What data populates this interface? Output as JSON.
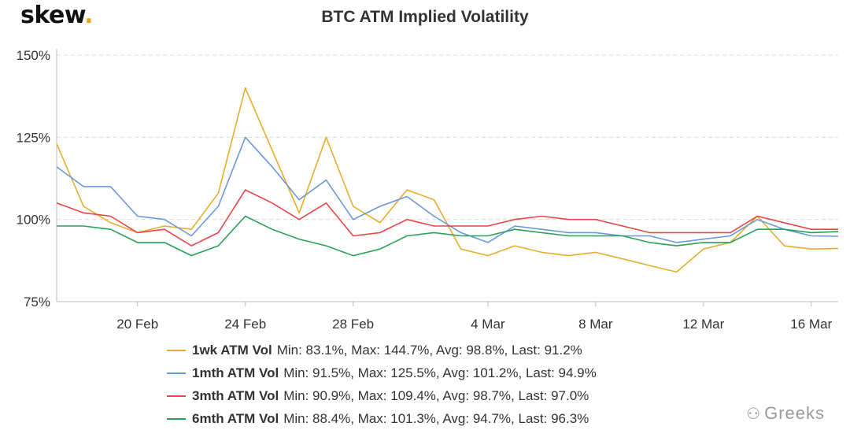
{
  "brand": {
    "name": "skew",
    "dot": "."
  },
  "watermark": {
    "icon": "wechat-icon",
    "text": "Greeks"
  },
  "colors": {
    "1wk": "#e6ad2e",
    "1mth": "#6a98d8",
    "3mth": "#e64646",
    "6mth": "#2aa05a",
    "grid": "#dddddd"
  },
  "chart_data": {
    "type": "line",
    "title": "BTC ATM Implied Volatility",
    "xlabel": "",
    "ylabel": "",
    "x_range": [
      "2020-02-17",
      "2020-03-17"
    ],
    "ylim": [
      75,
      150
    ],
    "y_ticks": [
      75,
      100,
      125,
      150
    ],
    "y_tick_labels": [
      "75%",
      "100%",
      "125%",
      "150%"
    ],
    "x_ticks": [
      "2020-02-20",
      "2020-02-24",
      "2020-02-28",
      "2020-03-04",
      "2020-03-08",
      "2020-03-12",
      "2020-03-16"
    ],
    "x_tick_labels": [
      "20 Feb",
      "24 Feb",
      "28 Feb",
      "4 Mar",
      "8 Mar",
      "12 Mar",
      "16 Mar"
    ],
    "grid": "horizontal dashed",
    "legend_position": "bottom",
    "dates": [
      "2020-02-17",
      "2020-02-18",
      "2020-02-19",
      "2020-02-20",
      "2020-02-21",
      "2020-02-22",
      "2020-02-23",
      "2020-02-24",
      "2020-02-25",
      "2020-02-26",
      "2020-02-27",
      "2020-02-28",
      "2020-02-29",
      "2020-03-01",
      "2020-03-02",
      "2020-03-03",
      "2020-03-04",
      "2020-03-05",
      "2020-03-06",
      "2020-03-07",
      "2020-03-08",
      "2020-03-09",
      "2020-03-10",
      "2020-03-11",
      "2020-03-12",
      "2020-03-13",
      "2020-03-14",
      "2020-03-15",
      "2020-03-16",
      "2020-03-17"
    ],
    "series": [
      {
        "key": "1wk",
        "name": "1wk ATM Vol",
        "stats": "Min: 83.1%, Max: 144.7%, Avg: 98.8%, Last: 91.2%",
        "values": [
          123,
          104,
          99,
          96,
          98,
          97,
          108,
          140,
          121,
          102,
          125,
          104,
          99,
          109,
          106,
          91,
          89,
          92,
          90,
          89,
          90,
          88,
          86,
          84,
          91,
          93,
          101,
          92,
          91,
          91.2
        ]
      },
      {
        "key": "1mth",
        "name": "1mth ATM Vol",
        "stats": "Min: 91.5%, Max: 125.5%, Avg: 101.2%, Last: 94.9%",
        "values": [
          116,
          110,
          110,
          101,
          100,
          95,
          104,
          125,
          116,
          106,
          112,
          100,
          104,
          107,
          101,
          96,
          93,
          98,
          97,
          96,
          96,
          95,
          95,
          93,
          94,
          95,
          100,
          97,
          95,
          94.9
        ]
      },
      {
        "key": "3mth",
        "name": "3mth ATM Vol",
        "stats": "Min: 90.9%, Max: 109.4%, Avg: 98.7%, Last: 97.0%",
        "values": [
          105,
          102,
          101,
          96,
          97,
          92,
          96,
          109,
          105,
          100,
          105,
          95,
          96,
          100,
          98,
          98,
          98,
          100,
          101,
          100,
          100,
          98,
          96,
          96,
          96,
          96,
          101,
          99,
          97,
          97.0
        ]
      },
      {
        "key": "6mth",
        "name": "6mth ATM Vol",
        "stats": "Min: 88.4%, Max: 101.3%, Avg: 94.7%, Last: 96.3%",
        "values": [
          98,
          98,
          97,
          93,
          93,
          89,
          92,
          101,
          97,
          94,
          92,
          89,
          91,
          95,
          96,
          95,
          95,
          97,
          96,
          95,
          95,
          95,
          93,
          92,
          93,
          93,
          97,
          97,
          96,
          96.3
        ]
      }
    ]
  }
}
